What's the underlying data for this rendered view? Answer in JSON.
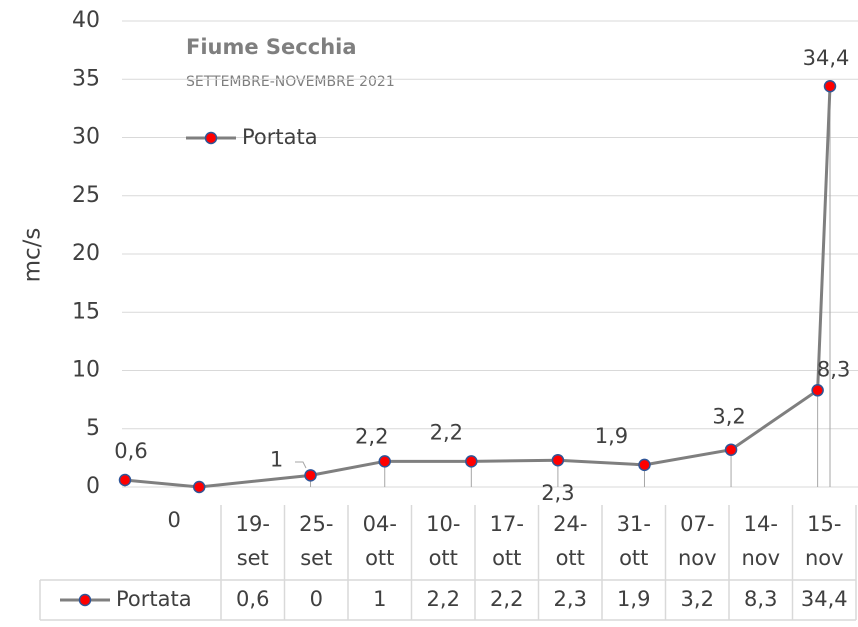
{
  "chart_data": {
    "type": "line",
    "title": "Fiume Secchia",
    "subtitle": "SETTEMBRE-NOVEMBRE 2021",
    "y_label": "mc/s",
    "categories": [
      "19-set",
      "25-set",
      "04-ott",
      "10-ott",
      "17-ott",
      "24-ott",
      "31-ott",
      "07-nov",
      "14-nov",
      "15-nov"
    ],
    "series": [
      {
        "name": "Portata",
        "color": "#7f7f7f",
        "marker_color": "#ff0000",
        "marker_edge": "#2f5597",
        "values": [
          0.6,
          0,
          1,
          2.2,
          2.2,
          2.3,
          1.9,
          3.2,
          8.3,
          34.4
        ],
        "value_labels": [
          "0,6",
          "0",
          "1",
          "2,2",
          "2,2",
          "2,3",
          "1,9",
          "3,2",
          "8,3",
          "34,4"
        ]
      }
    ],
    "ylim": [
      0,
      40
    ],
    "yticks": [
      0,
      5,
      10,
      15,
      20,
      25,
      30,
      35,
      40
    ],
    "grid": true,
    "date_axis": true,
    "data_table": true
  }
}
